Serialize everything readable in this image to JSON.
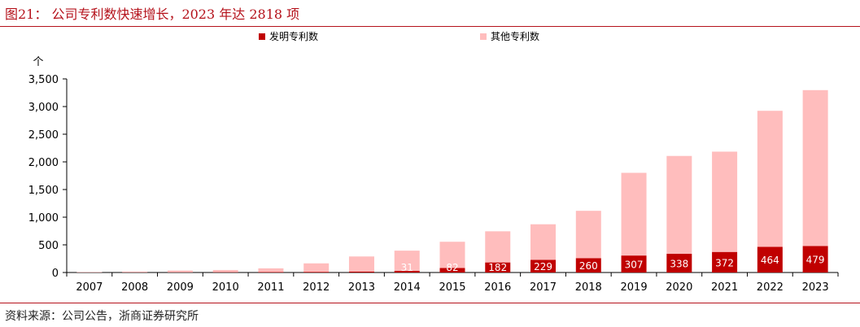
{
  "figure": {
    "title": "图21：  公司专利数快速增长，2023 年达 2818 项",
    "source": "资料来源：公司公告，浙商证券研究所"
  },
  "colors": {
    "series_invention": "#c00000",
    "series_other": "#ffbdbd",
    "accent": "#b5121b"
  },
  "chart_data": {
    "type": "bar",
    "stacked": true,
    "ylabel": "个",
    "ylim": [
      0,
      3500
    ],
    "yticks": [
      0,
      500,
      1000,
      1500,
      2000,
      2500,
      3000,
      3500
    ],
    "ytick_labels": [
      "0",
      "500",
      "1,000",
      "1,500",
      "2,000",
      "2,500",
      "3,000",
      "3,500"
    ],
    "legend_position": "top",
    "grid": false,
    "categories": [
      "2007",
      "2008",
      "2009",
      "2010",
      "2011",
      "2012",
      "2013",
      "2014",
      "2015",
      "2016",
      "2017",
      "2018",
      "2019",
      "2020",
      "2021",
      "2022",
      "2023"
    ],
    "series": [
      {
        "name": "发明专利数",
        "values": [
          1,
          2,
          3,
          5,
          8,
          12,
          18,
          31,
          82,
          182,
          229,
          260,
          307,
          338,
          372,
          464,
          479
        ],
        "labels": [
          "",
          "",
          "",
          "",
          "",
          "",
          "",
          "31",
          "82",
          "182",
          "229",
          "260",
          "307",
          "338",
          "372",
          "464",
          "479"
        ]
      },
      {
        "name": "其他专利数",
        "values": [
          9,
          15,
          32,
          40,
          67,
          153,
          272,
          364,
          474,
          563,
          643,
          855,
          1495,
          1769,
          1813,
          2459,
          2818
        ]
      }
    ]
  }
}
